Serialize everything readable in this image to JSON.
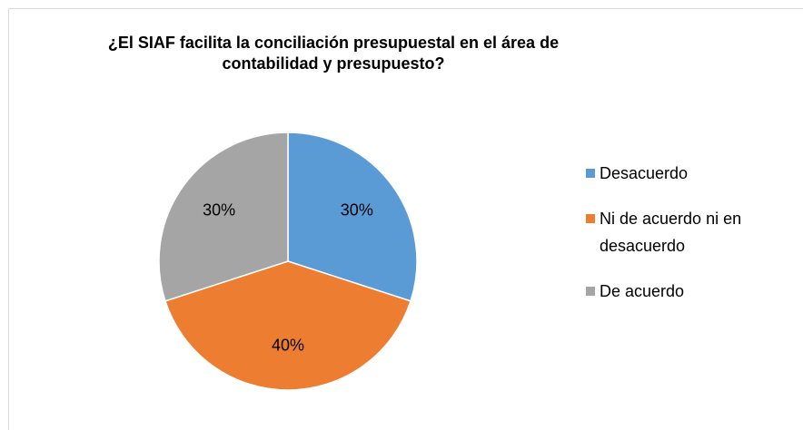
{
  "chart_data": {
    "type": "pie",
    "title": "¿El SIAF facilita la conciliación presupuestal en el área de contabilidad y presupuesto?",
    "categories": [
      "Desacuerdo",
      "Ni de acuerdo ni en desacuerdo",
      "De acuerdo"
    ],
    "values": [
      30,
      40,
      30
    ],
    "value_labels": [
      "30%",
      "40%",
      "30%"
    ],
    "colors": [
      "#5b9bd5",
      "#ed7d31",
      "#a5a5a5"
    ],
    "legend": "right"
  }
}
